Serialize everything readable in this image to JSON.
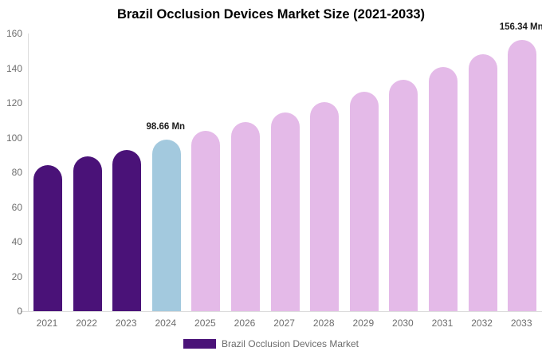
{
  "title": "Brazil Occlusion Devices Market Size (2021-2033)",
  "colors": {
    "historical": "#4A1278",
    "current": "#A3C9DE",
    "forecast": "#E4BAE8",
    "axis_text": "#6e6e6e",
    "axis_line": "#dcdcdc",
    "annotation_text": "#1c1c1c"
  },
  "chart_data": {
    "type": "bar",
    "title": "Brazil Occlusion Devices Market Size (2021-2033)",
    "categories": [
      "2021",
      "2022",
      "2023",
      "2024",
      "2025",
      "2026",
      "2027",
      "2028",
      "2029",
      "2030",
      "2031",
      "2032",
      "2033"
    ],
    "values": [
      84,
      89,
      93,
      98.66,
      104,
      109,
      114.5,
      120.5,
      126.5,
      133.5,
      140.5,
      148,
      156.34
    ],
    "bar_colors": [
      "#4A1278",
      "#4A1278",
      "#4A1278",
      "#A3C9DE",
      "#E4BAE8",
      "#E4BAE8",
      "#E4BAE8",
      "#E4BAE8",
      "#E4BAE8",
      "#E4BAE8",
      "#E4BAE8",
      "#E4BAE8",
      "#E4BAE8"
    ],
    "unit": "Mn",
    "annotations": [
      {
        "category": "2024",
        "text": "98.66 Mn"
      },
      {
        "category": "2033",
        "text": "156.34 Mn"
      }
    ],
    "xlabel": "",
    "ylabel": "",
    "ylim": [
      0,
      160
    ],
    "yticks": [
      0,
      20,
      40,
      60,
      80,
      100,
      120,
      140,
      160
    ],
    "grid": false,
    "legend_position": "bottom",
    "legend": [
      {
        "label": "Brazil Occlusion Devices Market",
        "color": "#4A1278"
      }
    ]
  }
}
